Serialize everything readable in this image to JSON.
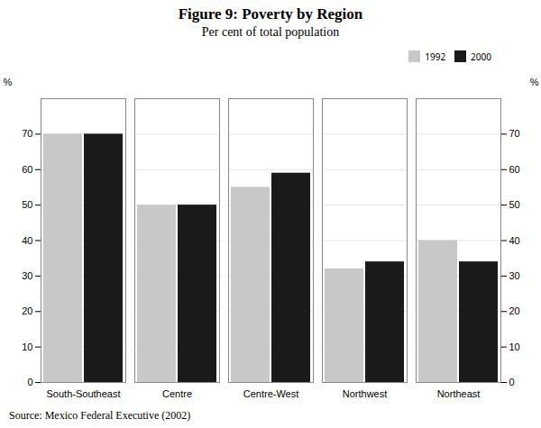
{
  "chart_data": {
    "type": "bar",
    "title": "Figure 9: Poverty by Region",
    "subtitle": "Per cent of total population",
    "source": "Source: Mexico Federal Executive (2002)",
    "categories": [
      "South-Southeast",
      "Centre",
      "Centre-West",
      "Northwest",
      "Northeast"
    ],
    "series": [
      {
        "name": "1992",
        "color": "#c8c8c8",
        "values": [
          70,
          50,
          55,
          32,
          40
        ]
      },
      {
        "name": "2000",
        "color": "#1a1a1a",
        "values": [
          70,
          50,
          59,
          34,
          34
        ]
      }
    ],
    "ylabel": "%",
    "y2label": "%",
    "ylim": [
      0,
      80
    ],
    "yticks": [
      0,
      10,
      20,
      30,
      40,
      50,
      60,
      70
    ],
    "y2lim": [
      0,
      80
    ],
    "y2ticks": [
      0,
      10,
      20,
      30,
      40,
      50,
      60,
      70
    ],
    "grid": true,
    "legend": "upper right"
  }
}
